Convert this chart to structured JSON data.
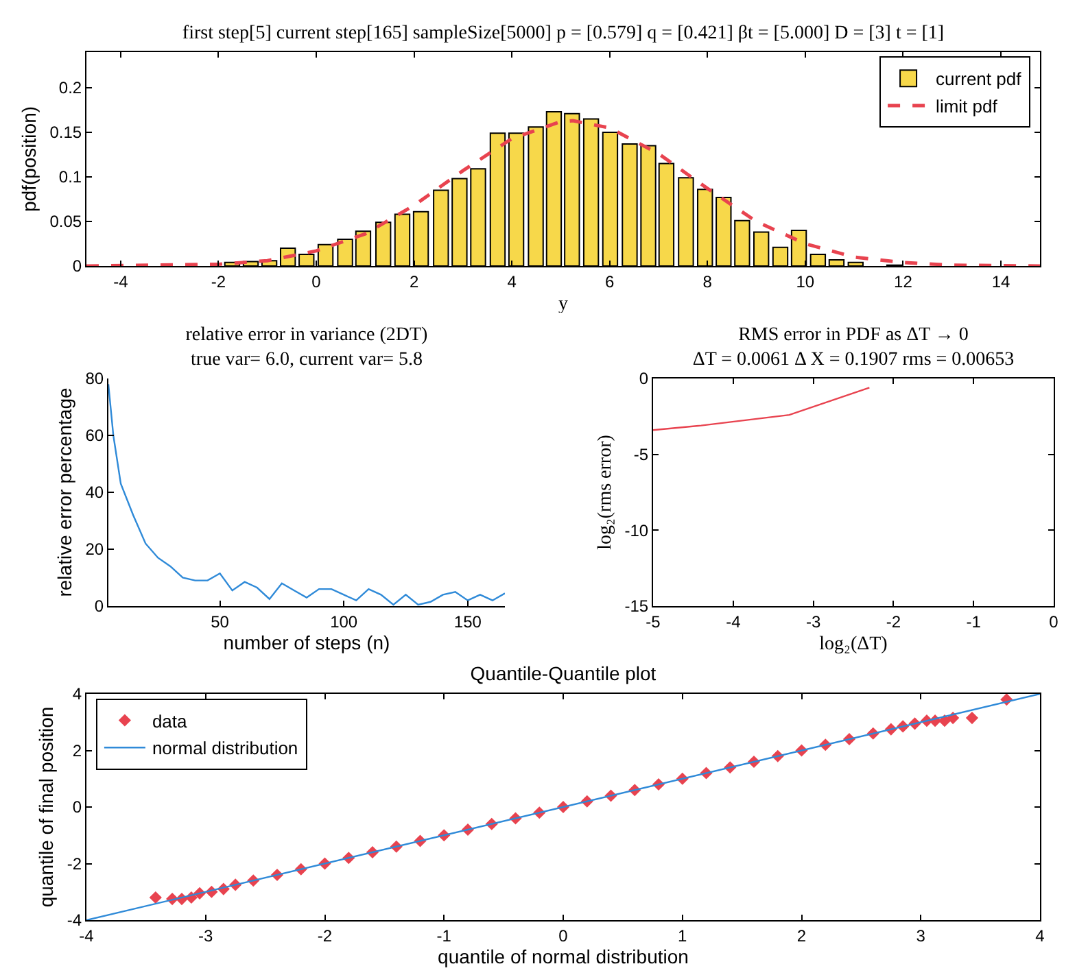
{
  "chart_data": [
    {
      "type": "bar",
      "title": "first step[5] current step[165] sampleSize[5000] p = [0.579] q = [0.421] βt = [5.000] D = [3] t = [1]",
      "xlabel": "y",
      "ylabel": "pdf(position)",
      "xlim": [
        -4.7,
        14.8
      ],
      "xticks": [
        -4,
        -2,
        0,
        2,
        4,
        6,
        8,
        10,
        12,
        14
      ],
      "ylim": [
        0,
        0.24
      ],
      "yticks": [
        0,
        0.05,
        0.1,
        0.15,
        0.2
      ],
      "legend": "top right",
      "series": [
        {
          "name": "current pdf",
          "type": "bar",
          "color": "#f7d84a",
          "x": [
            -1.72,
            -1.34,
            -0.96,
            -0.58,
            -0.2,
            0.19,
            0.59,
            0.96,
            1.37,
            1.76,
            2.14,
            2.55,
            2.93,
            3.31,
            3.71,
            4.09,
            4.49,
            4.86,
            5.23,
            5.62,
            6.01,
            6.41,
            6.79,
            7.16,
            7.56,
            7.95,
            8.33,
            8.71,
            9.1,
            9.49,
            9.87,
            10.26,
            10.64,
            11.03,
            11.82
          ],
          "values": [
            0.004,
            0.005,
            0.006,
            0.02,
            0.013,
            0.024,
            0.03,
            0.039,
            0.049,
            0.058,
            0.061,
            0.085,
            0.098,
            0.109,
            0.149,
            0.149,
            0.156,
            0.173,
            0.171,
            0.165,
            0.15,
            0.137,
            0.135,
            0.115,
            0.099,
            0.086,
            0.077,
            0.051,
            0.038,
            0.021,
            0.04,
            0.013,
            0.007,
            0.004,
            0.001
          ]
        },
        {
          "name": "limit pdf",
          "type": "line",
          "color": "#e8434f",
          "line_style": "dashed",
          "x": [
            -4.7,
            -2,
            -1,
            0,
            1,
            2,
            3,
            4,
            5,
            5.25,
            6,
            7,
            8,
            9,
            10,
            11,
            12,
            13,
            14.8
          ],
          "values": [
            0,
            0.002,
            0.006,
            0.017,
            0.036,
            0.068,
            0.107,
            0.143,
            0.162,
            0.163,
            0.155,
            0.126,
            0.087,
            0.05,
            0.025,
            0.01,
            0.004,
            0.001,
            0
          ]
        }
      ]
    },
    {
      "type": "line",
      "title": "relative error in variance (2DT)",
      "subtitle": "true var= 6.0, current var= 5.8",
      "xlabel": "number of steps (n)",
      "ylabel": "relative error percentage",
      "xlim": [
        5,
        165
      ],
      "xticks": [
        50,
        100,
        150
      ],
      "ylim": [
        0,
        80
      ],
      "yticks": [
        0,
        20,
        40,
        60,
        80
      ],
      "series": [
        {
          "color": "#2f8ad8",
          "x": [
            5,
            7,
            10,
            15,
            20,
            25,
            30,
            35,
            40,
            45,
            50,
            55,
            60,
            65,
            70,
            75,
            80,
            85,
            90,
            95,
            100,
            105,
            110,
            115,
            120,
            125,
            130,
            135,
            140,
            145,
            150,
            155,
            160,
            165
          ],
          "values": [
            78,
            60,
            43,
            32,
            22,
            17,
            14,
            10,
            9,
            9,
            11.5,
            5.5,
            8.5,
            6.5,
            2.5,
            8,
            5.5,
            3,
            6,
            6,
            4,
            2,
            6,
            4,
            0.5,
            4,
            0.5,
            1.5,
            4,
            5,
            2,
            4,
            2,
            4.5
          ]
        }
      ]
    },
    {
      "type": "line",
      "title": "RMS error in PDF as ΔT → 0",
      "subtitle": "ΔT = 0.0061 Δ X = 0.1907 rms = 0.00653",
      "xlabel": "log₂(ΔT)",
      "ylabel": "log₂(rms error)",
      "xlim": [
        -5,
        0
      ],
      "xticks": [
        -5,
        -4,
        -3,
        -2,
        -1,
        0
      ],
      "ylim": [
        -15,
        0
      ],
      "yticks": [
        -15,
        -10,
        -5,
        0
      ],
      "series": [
        {
          "color": "#e8434f",
          "x": [
            -5,
            -4.4,
            -3.3,
            -2.3
          ],
          "values": [
            -3.4,
            -3.1,
            -2.4,
            -0.6
          ]
        }
      ]
    },
    {
      "type": "scatter",
      "title": "Quantile-Quantile plot",
      "xlabel": "quantile of normal distribution",
      "ylabel": "quantile of final position",
      "xlim": [
        -4,
        4
      ],
      "xticks": [
        -4,
        -3,
        -2,
        -1,
        0,
        1,
        2,
        3,
        4
      ],
      "ylim": [
        -4,
        4
      ],
      "yticks": [
        -4,
        -2,
        0,
        2,
        4
      ],
      "legend": "top left",
      "series": [
        {
          "name": "data",
          "type": "scatter",
          "marker": "diamond",
          "color": "#e8434f",
          "x": [
            -3.42,
            -3.28,
            -3.2,
            -3.12,
            -3.05,
            -2.95,
            -2.85,
            -2.75,
            -2.6,
            -2.4,
            -2.2,
            -2.0,
            -1.8,
            -1.6,
            -1.4,
            -1.2,
            -1.0,
            -0.8,
            -0.6,
            -0.4,
            -0.2,
            0,
            0.2,
            0.4,
            0.6,
            0.8,
            1.0,
            1.2,
            1.4,
            1.6,
            1.8,
            2.0,
            2.2,
            2.4,
            2.6,
            2.75,
            2.85,
            2.95,
            3.05,
            3.12,
            3.2,
            3.27,
            3.43,
            3.72
          ],
          "values": [
            -3.2,
            -3.25,
            -3.25,
            -3.2,
            -3.05,
            -3.0,
            -2.9,
            -2.75,
            -2.6,
            -2.4,
            -2.2,
            -2.0,
            -1.8,
            -1.6,
            -1.4,
            -1.2,
            -1.0,
            -0.8,
            -0.6,
            -0.4,
            -0.2,
            0,
            0.2,
            0.4,
            0.6,
            0.8,
            1.0,
            1.2,
            1.4,
            1.6,
            1.8,
            2.0,
            2.2,
            2.4,
            2.6,
            2.75,
            2.85,
            2.95,
            3.05,
            3.05,
            3.05,
            3.15,
            3.15,
            3.8
          ]
        },
        {
          "name": "normal distribution",
          "type": "line",
          "color": "#2f8ad8",
          "x": [
            -4,
            4
          ],
          "values": [
            -4,
            4
          ]
        }
      ]
    }
  ]
}
